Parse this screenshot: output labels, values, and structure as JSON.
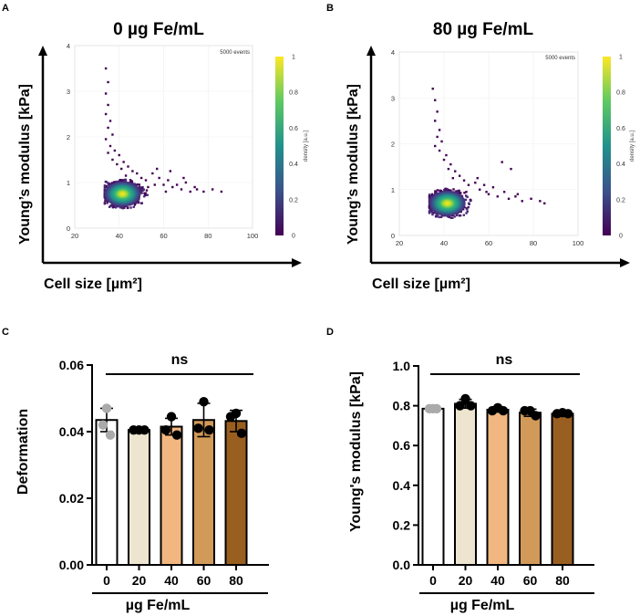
{
  "chart_data": [
    {
      "panel": "A",
      "type": "scatter",
      "title": "0 µg Fe/mL",
      "xlabel": "Cell size [µm²]",
      "ylabel": "Young’s modulus [kPa]",
      "xlim": [
        20,
        100
      ],
      "ylim": [
        0,
        4
      ],
      "xticks": [
        20,
        40,
        60,
        80,
        100
      ],
      "yticks": [
        0,
        1,
        2,
        3,
        4
      ],
      "annotation": "5000 events",
      "colorbar": {
        "label": "density [a.u.]",
        "ticks": [
          0,
          0.2,
          0.4,
          0.6,
          0.8,
          1
        ]
      },
      "density_center": [
        40,
        0.75
      ],
      "outliers": [
        [
          34,
          3.5
        ],
        [
          35,
          3.2
        ],
        [
          34,
          2.95
        ],
        [
          35,
          2.7
        ],
        [
          34,
          2.5
        ],
        [
          36,
          2.35
        ],
        [
          35,
          2.2
        ],
        [
          37,
          2.05
        ],
        [
          34,
          1.95
        ],
        [
          36,
          1.8
        ],
        [
          38,
          1.7
        ],
        [
          35,
          1.65
        ],
        [
          40,
          1.6
        ],
        [
          37,
          1.5
        ],
        [
          42,
          1.45
        ],
        [
          39,
          1.4
        ],
        [
          44,
          1.35
        ],
        [
          41,
          1.3
        ],
        [
          46,
          1.25
        ],
        [
          48,
          1.2
        ],
        [
          43,
          1.15
        ],
        [
          50,
          1.1
        ],
        [
          52,
          1.05
        ],
        [
          55,
          1.2
        ],
        [
          58,
          1.1
        ],
        [
          60,
          0.95
        ],
        [
          62,
          1.05
        ],
        [
          64,
          0.9
        ],
        [
          66,
          0.95
        ],
        [
          68,
          0.85
        ],
        [
          70,
          1.0
        ],
        [
          72,
          0.8
        ],
        [
          75,
          0.85
        ],
        [
          78,
          0.8
        ],
        [
          82,
          0.85
        ],
        [
          86,
          0.8
        ],
        [
          57,
          1.3
        ],
        [
          63,
          1.25
        ],
        [
          69,
          1.1
        ],
        [
          53,
          0.9
        ],
        [
          56,
          0.95
        ],
        [
          61,
          0.8
        ],
        [
          74,
          0.9
        ]
      ]
    },
    {
      "panel": "B",
      "type": "scatter",
      "title": "80 µg Fe/mL",
      "xlabel": "Cell size [µm²]",
      "ylabel": "Young’s modulus [kPa]",
      "xlim": [
        20,
        100
      ],
      "ylim": [
        0,
        4
      ],
      "xticks": [
        20,
        40,
        60,
        80,
        100
      ],
      "yticks": [
        0,
        1,
        2,
        3,
        4
      ],
      "annotation": "5000 events",
      "colorbar": {
        "label": "density [a.u.]",
        "ticks": [
          0,
          0.2,
          0.4,
          0.6,
          0.8,
          1
        ]
      },
      "density_center": [
        40,
        0.7
      ],
      "outliers": [
        [
          35,
          3.2
        ],
        [
          36,
          2.95
        ],
        [
          37,
          2.7
        ],
        [
          36,
          2.5
        ],
        [
          38,
          2.3
        ],
        [
          37,
          2.15
        ],
        [
          39,
          2.05
        ],
        [
          36,
          1.95
        ],
        [
          38,
          1.85
        ],
        [
          41,
          1.75
        ],
        [
          40,
          1.65
        ],
        [
          43,
          1.55
        ],
        [
          42,
          1.45
        ],
        [
          45,
          1.4
        ],
        [
          47,
          1.3
        ],
        [
          44,
          1.25
        ],
        [
          49,
          1.2
        ],
        [
          51,
          1.1
        ],
        [
          54,
          1.15
        ],
        [
          56,
          1.0
        ],
        [
          58,
          1.1
        ],
        [
          60,
          0.9
        ],
        [
          62,
          1.05
        ],
        [
          64,
          0.85
        ],
        [
          67,
          0.95
        ],
        [
          69,
          0.8
        ],
        [
          72,
          0.85
        ],
        [
          75,
          0.75
        ],
        [
          79,
          0.8
        ],
        [
          83,
          0.75
        ],
        [
          85,
          0.7
        ],
        [
          66,
          1.6
        ],
        [
          70,
          1.45
        ],
        [
          55,
          1.25
        ],
        [
          59,
          0.95
        ],
        [
          73,
          0.9
        ],
        [
          50,
          0.95
        ]
      ]
    },
    {
      "panel": "C",
      "type": "bar",
      "categories": [
        "0",
        "20",
        "40",
        "60",
        "80"
      ],
      "values": [
        0.0435,
        0.0405,
        0.0415,
        0.0435,
        0.0432
      ],
      "errors": [
        0.0035,
        0.0005,
        0.0025,
        0.005,
        0.0032
      ],
      "points": [
        [
          0.047,
          0.042,
          0.039
        ],
        [
          0.0405,
          0.0405,
          0.0405
        ],
        [
          0.0445,
          0.039,
          0.0405
        ],
        [
          0.049,
          0.041,
          0.0405
        ],
        [
          0.0455,
          0.0445,
          0.0395
        ]
      ],
      "point_colors": [
        "#aaaaaa",
        "#000000",
        "#000000",
        "#000000",
        "#000000"
      ],
      "bar_colors": [
        "#ffffff",
        "#ede5cf",
        "#f2b780",
        "#d19a58",
        "#995f21"
      ],
      "xlabel": "µg Fe/mL",
      "ylabel": "Deformation",
      "ylim": [
        0,
        0.06
      ],
      "yticks": [
        "0.00",
        "0.02",
        "0.04",
        "0.06"
      ],
      "significance": "ns"
    },
    {
      "panel": "D",
      "type": "bar",
      "categories": [
        "0",
        "20",
        "40",
        "60",
        "80"
      ],
      "values": [
        0.785,
        0.81,
        0.78,
        0.765,
        0.76
      ],
      "errors": [
        0.002,
        0.022,
        0.012,
        0.018,
        0.012
      ],
      "points": [
        [
          0.785,
          0.785,
          0.785
        ],
        [
          0.835,
          0.8,
          0.8
        ],
        [
          0.79,
          0.775,
          0.775
        ],
        [
          0.775,
          0.775,
          0.75
        ],
        [
          0.76,
          0.76,
          0.765
        ]
      ],
      "point_colors": [
        "#aaaaaa",
        "#000000",
        "#000000",
        "#000000",
        "#000000"
      ],
      "bar_colors": [
        "#ffffff",
        "#ede5cf",
        "#f2b780",
        "#d19a58",
        "#995f21"
      ],
      "xlabel": "µg Fe/mL",
      "ylabel": "Young's modulus [kPa]",
      "ylim": [
        0,
        1.0
      ],
      "yticks": [
        "0.0",
        "0.2",
        "0.4",
        "0.6",
        "0.8",
        "1.0"
      ],
      "significance": "ns"
    }
  ]
}
